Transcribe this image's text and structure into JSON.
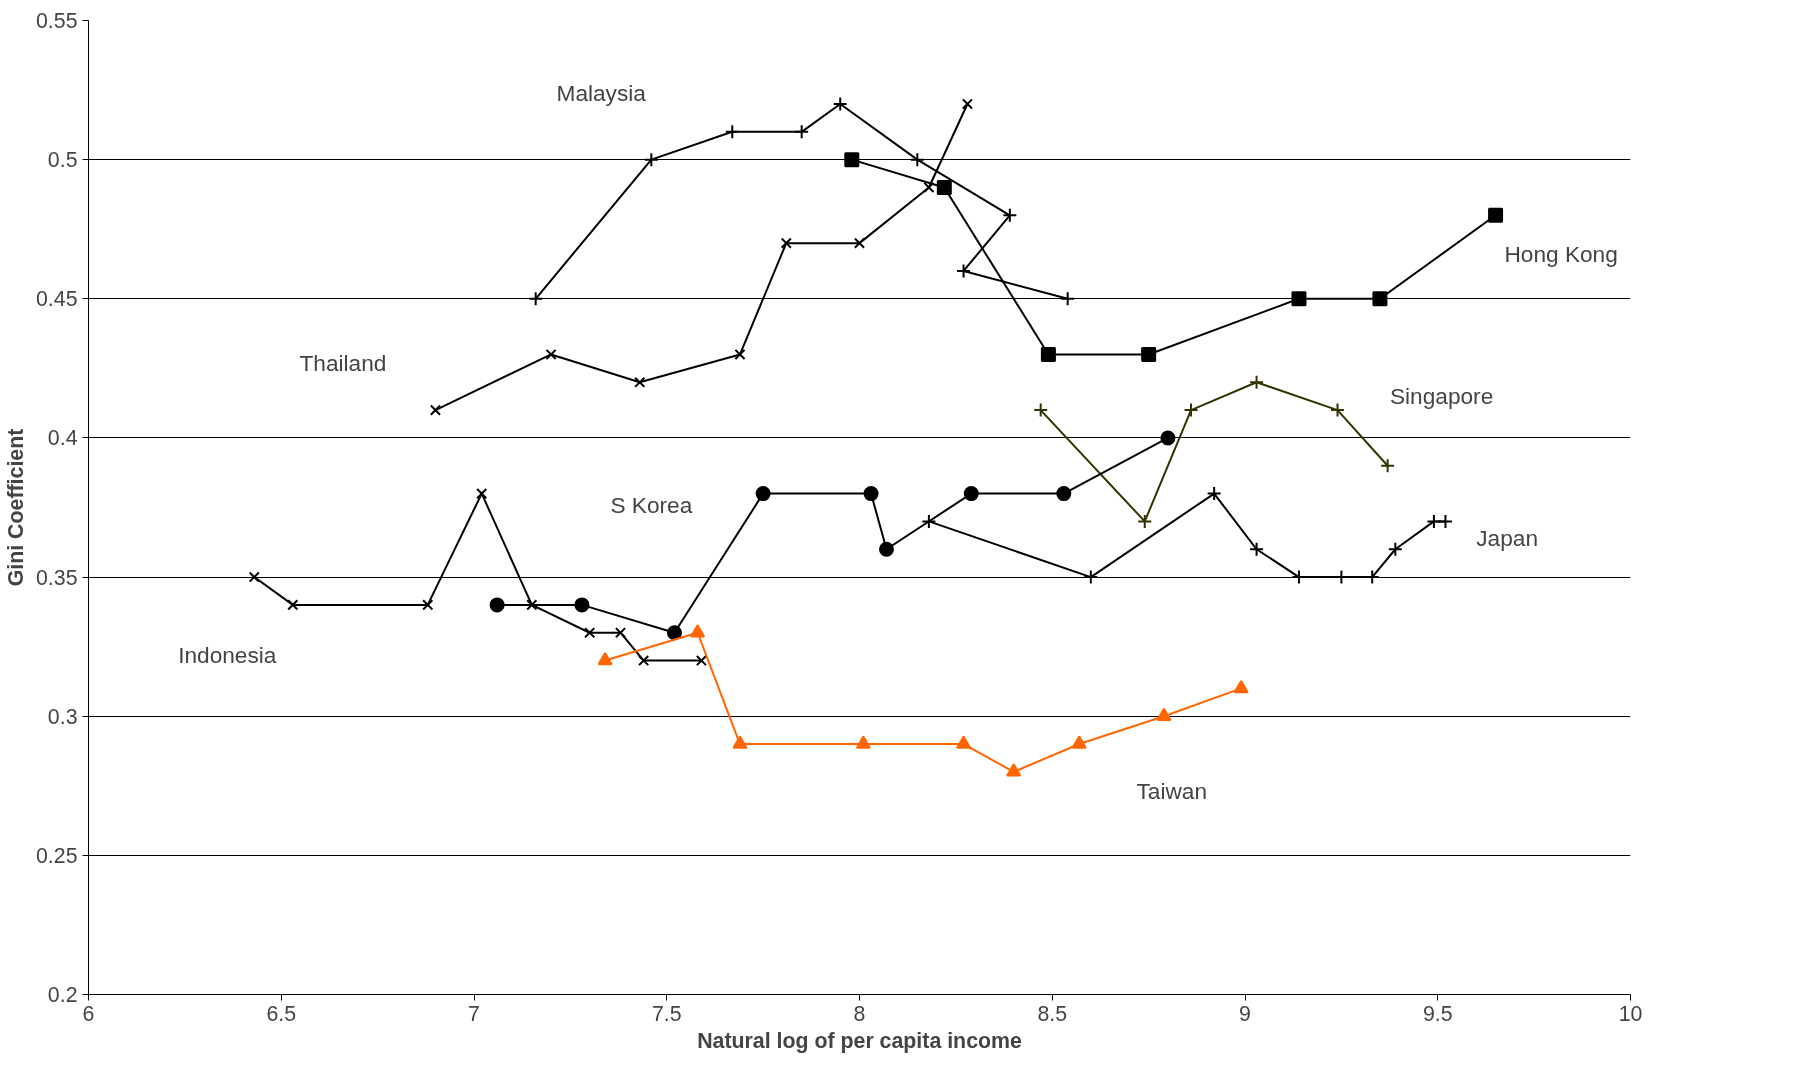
{
  "chart_data": {
    "type": "line",
    "xlabel": "Natural log of per capita income",
    "ylabel": "Gini Coefficient",
    "xlim": [
      6,
      10
    ],
    "xticks": [
      6,
      6.5,
      7,
      7.5,
      8,
      8.5,
      9,
      9.5,
      10
    ],
    "ylim": [
      0.2,
      0.55
    ],
    "yticks": [
      0.2,
      0.25,
      0.3,
      0.35,
      0.4,
      0.45,
      0.5,
      0.55
    ],
    "grid": "y",
    "series": [
      {
        "name": "Malaysia",
        "color": "#000000",
        "marker": "cross",
        "x": [
          7.16,
          7.46,
          7.67,
          7.85,
          7.95,
          8.15,
          8.39,
          8.27,
          8.54
        ],
        "values": [
          0.45,
          0.5,
          0.51,
          0.51,
          0.52,
          0.5,
          0.48,
          0.46,
          0.45
        ]
      },
      {
        "name": "Thailand",
        "color": "#000000",
        "marker": "x",
        "x": [
          6.9,
          7.2,
          7.43,
          7.69,
          7.81,
          8.0,
          8.18,
          8.28
        ],
        "values": [
          0.41,
          0.43,
          0.42,
          0.43,
          0.47,
          0.47,
          0.49,
          0.52
        ]
      },
      {
        "name": "Hong Kong",
        "color": "#000000",
        "marker": "square",
        "x": [
          7.98,
          8.22,
          8.49,
          8.75,
          9.14,
          9.35,
          9.65
        ],
        "values": [
          0.5,
          0.49,
          0.43,
          0.43,
          0.45,
          0.45,
          0.48
        ]
      },
      {
        "name": "Singapore",
        "color": "#333300",
        "marker": "cross",
        "x": [
          8.47,
          8.74,
          8.86,
          9.03,
          9.24,
          9.37
        ],
        "values": [
          0.41,
          0.37,
          0.41,
          0.42,
          0.41,
          0.39
        ]
      },
      {
        "name": "S Korea",
        "color": "#000000",
        "marker": "circle",
        "x": [
          7.06,
          7.28,
          7.52,
          7.75,
          8.03,
          8.07,
          8.29,
          8.53,
          8.8
        ],
        "values": [
          0.34,
          0.34,
          0.33,
          0.38,
          0.38,
          0.36,
          0.38,
          0.38,
          0.4
        ]
      },
      {
        "name": "Japan",
        "color": "#000000",
        "marker": "cross",
        "x": [
          8.18,
          8.6,
          8.92,
          9.03,
          9.14,
          9.25,
          9.33,
          9.39,
          9.49,
          9.52
        ],
        "values": [
          0.37,
          0.35,
          0.38,
          0.36,
          0.35,
          0.35,
          0.35,
          0.36,
          0.37,
          0.37
        ]
      },
      {
        "name": "Indonesia",
        "color": "#000000",
        "marker": "x",
        "x": [
          6.43,
          6.53,
          6.88,
          7.02,
          7.15,
          7.3,
          7.38,
          7.44,
          7.59
        ],
        "values": [
          0.35,
          0.34,
          0.34,
          0.38,
          0.34,
          0.33,
          0.33,
          0.32,
          0.32
        ]
      },
      {
        "name": "Taiwan",
        "color": "#ff6600",
        "marker": "triangle",
        "x": [
          7.34,
          7.58,
          7.69,
          8.01,
          8.27,
          8.4,
          8.57,
          8.79,
          8.99
        ],
        "values": [
          0.32,
          0.33,
          0.29,
          0.29,
          0.29,
          0.28,
          0.29,
          0.3,
          0.31
        ]
      }
    ]
  }
}
